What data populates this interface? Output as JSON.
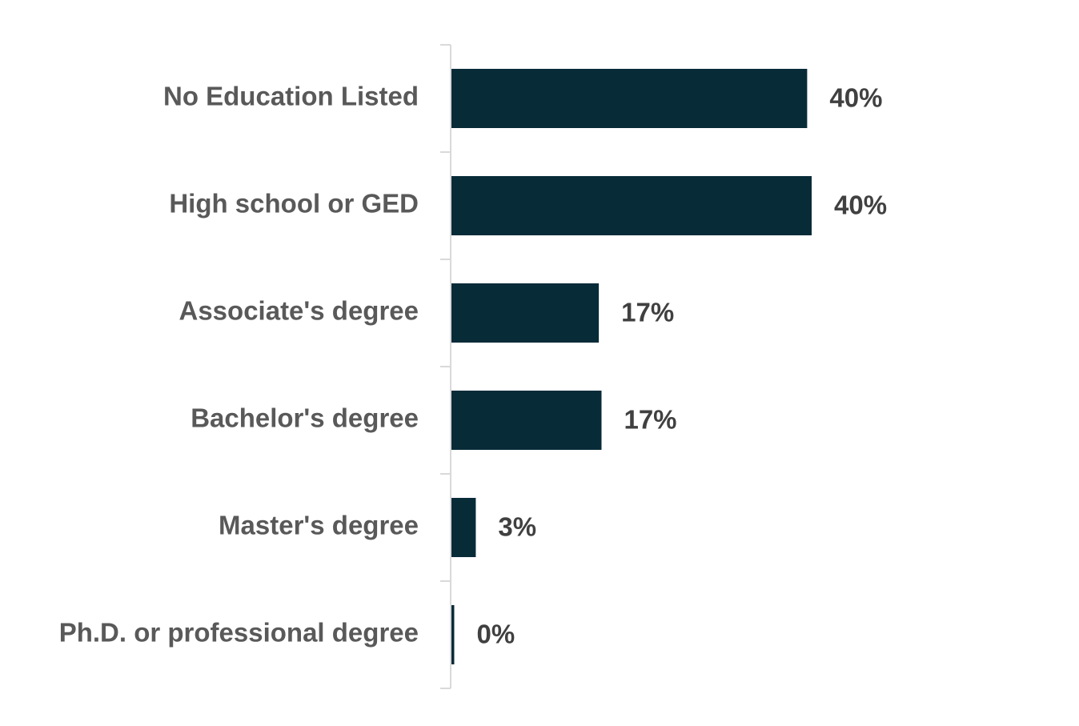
{
  "chart_data": {
    "type": "bar",
    "orientation": "horizontal",
    "categories": [
      "No Education Listed",
      "High school or GED",
      "Associate's degree",
      "Bachelor's degree",
      "Master's degree",
      "Ph.D. or professional degree"
    ],
    "values": [
      39.7,
      40.2,
      16.5,
      16.8,
      2.8,
      0.4
    ],
    "value_labels": [
      "40%",
      "40%",
      "17%",
      "17%",
      "3%",
      "0%"
    ],
    "color": "#082b38"
  }
}
